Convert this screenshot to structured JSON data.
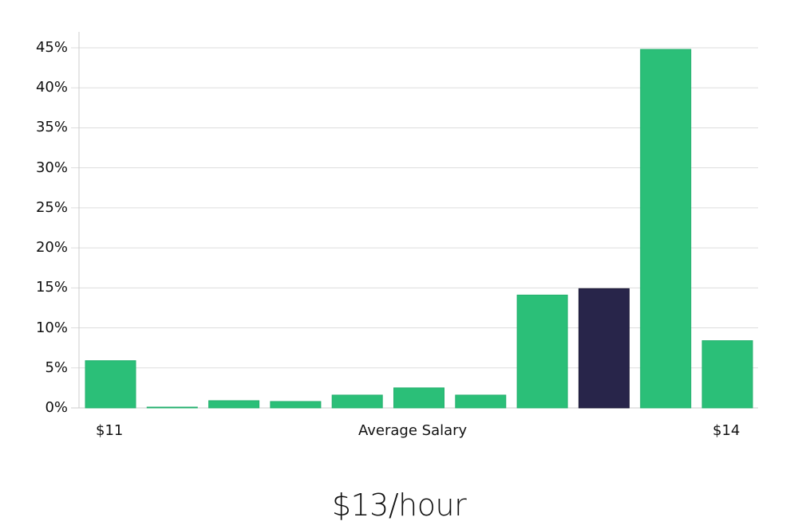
{
  "chart_data": {
    "type": "bar",
    "title": "",
    "xlabel": "Average Salary",
    "ylabel": "",
    "ylim": [
      0,
      45
    ],
    "grid": true,
    "y_ticks": [
      "0%",
      "5%",
      "10%",
      "15%",
      "20%",
      "25%",
      "30%",
      "35%",
      "40%",
      "45%"
    ],
    "x_tick_labels": {
      "left": "$11",
      "center": "Average Salary",
      "right": "$14"
    },
    "categories": [
      "bin1",
      "bin2",
      "bin3",
      "bin4",
      "bin5",
      "bin6",
      "bin7",
      "bin8",
      "bin9",
      "bin10",
      "bin11"
    ],
    "values": [
      5.9,
      0.1,
      0.9,
      0.8,
      1.6,
      2.5,
      1.6,
      14.1,
      14.9,
      44.8,
      8.4
    ],
    "highlight_index": 8,
    "colors": {
      "bar": "#2bbf78",
      "highlight": "#28254a",
      "grid": "#dddddd",
      "axis": "#cccccc"
    },
    "summary_value": "$13/hour"
  },
  "labels": {
    "x_left": "$11",
    "x_center": "Average Salary",
    "x_right": "$14",
    "summary": "$13/hour"
  }
}
